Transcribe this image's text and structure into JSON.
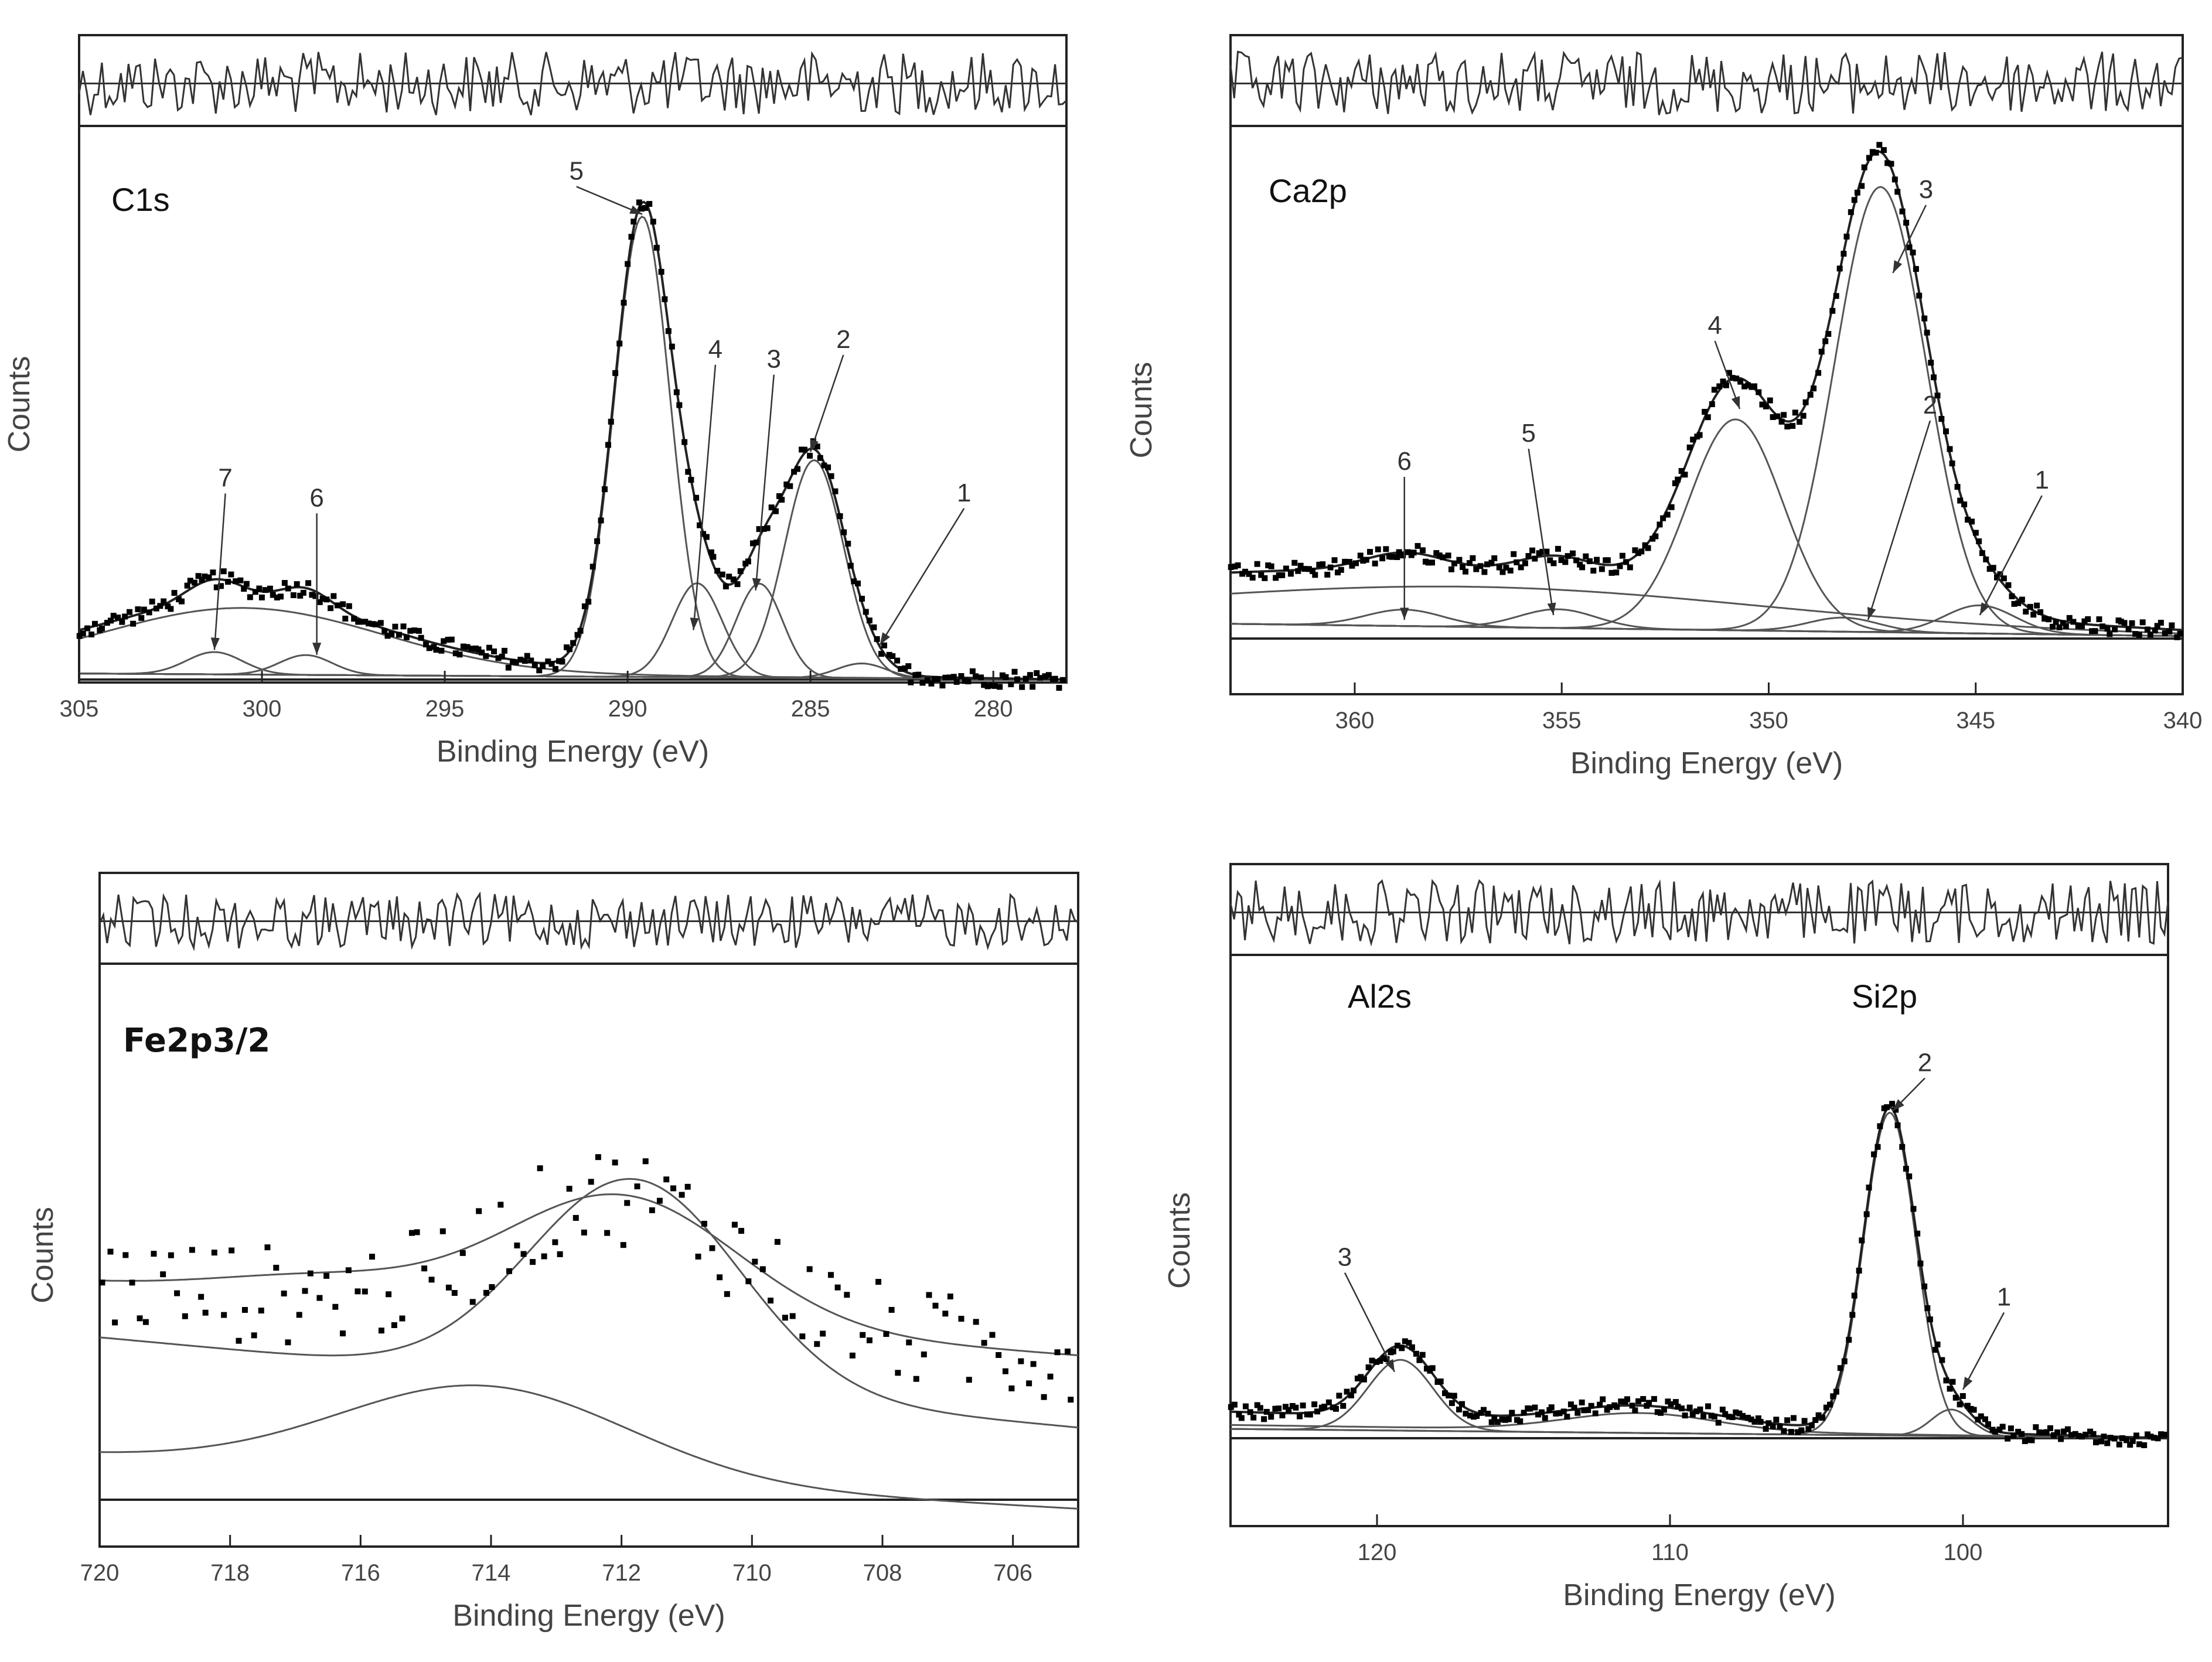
{
  "figure": {
    "description_note": "XPS high-resolution spectra",
    "colors": {
      "points": "#000000",
      "lines": "#555555",
      "axis": "#222222"
    }
  },
  "chart_data": [
    {
      "type": "scatter",
      "title": "C1s",
      "xlabel": "Binding Energy (eV)",
      "ylabel": "Counts",
      "xlim": [
        305,
        278
      ],
      "ylim": [
        0,
        1
      ],
      "xticks": [
        305,
        300,
        295,
        290,
        285,
        280
      ],
      "xtick_labels": [
        "305",
        "300",
        "295",
        "290",
        "285",
        "280"
      ],
      "background": {
        "start": 0.035,
        "end": 0.0
      },
      "peaks": [
        {
          "label": "1",
          "center": 283.6,
          "amplitude": 0.03,
          "fwhm": 1.6,
          "label_at": [
            280.8,
            0.36
          ],
          "arrow_to": [
            283.1,
            0.07
          ]
        },
        {
          "label": "2",
          "center": 284.9,
          "amplitude": 0.44,
          "fwhm": 1.9,
          "label_at": [
            284.1,
            0.67
          ],
          "arrow_to": [
            285.0,
            0.46
          ]
        },
        {
          "label": "3",
          "center": 286.4,
          "amplitude": 0.19,
          "fwhm": 1.5,
          "label_at": [
            286.0,
            0.63
          ],
          "arrow_to": [
            286.5,
            0.18
          ]
        },
        {
          "label": "4",
          "center": 288.1,
          "amplitude": 0.19,
          "fwhm": 1.6,
          "label_at": [
            287.6,
            0.65
          ],
          "arrow_to": [
            288.2,
            0.1
          ]
        },
        {
          "label": "5",
          "center": 289.6,
          "amplitude": 0.93,
          "fwhm": 1.8,
          "label_at": [
            291.4,
            1.01
          ],
          "arrow_to": [
            289.6,
            0.94
          ]
        },
        {
          "label": "6",
          "center": 298.8,
          "amplitude": 0.04,
          "fwhm": 1.7,
          "label_at": [
            298.5,
            0.35
          ],
          "arrow_to": [
            298.5,
            0.05
          ]
        },
        {
          "label": "7",
          "center": 301.3,
          "amplitude": 0.045,
          "fwhm": 1.8,
          "label_at": [
            301.0,
            0.39
          ],
          "arrow_to": [
            301.3,
            0.06
          ]
        }
      ],
      "broad_component": {
        "center": 300.5,
        "amplitude": 0.13,
        "fwhm": 9
      },
      "residual_noise": 0.35
    },
    {
      "type": "scatter",
      "title": "Ca2p",
      "xlabel": "Binding Energy (eV)",
      "ylabel": "Counts",
      "xlim": [
        363,
        340
      ],
      "ylim": [
        0,
        1
      ],
      "xticks": [
        360,
        355,
        350,
        345,
        340
      ],
      "xtick_labels": [
        "360",
        "355",
        "350",
        "345",
        "340"
      ],
      "background": {
        "start": 0.09,
        "end": 0.015
      },
      "peaks": [
        {
          "label": "1",
          "center": 344.9,
          "amplitude": 0.06,
          "fwhm": 2.0,
          "label_at": [
            343.4,
            0.32
          ],
          "arrow_to": [
            344.9,
            0.05
          ]
        },
        {
          "label": "2",
          "center": 348.2,
          "amplitude": 0.03,
          "fwhm": 2.0,
          "label_at": [
            346.1,
            0.48
          ],
          "arrow_to": [
            347.6,
            0.04
          ]
        },
        {
          "label": "3",
          "center": 347.3,
          "amplitude": 0.95,
          "fwhm": 2.6,
          "label_at": [
            346.2,
            0.94
          ],
          "arrow_to": [
            347.0,
            0.78
          ]
        },
        {
          "label": "4",
          "center": 350.8,
          "amplitude": 0.45,
          "fwhm": 2.7,
          "label_at": [
            351.3,
            0.65
          ],
          "arrow_to": [
            350.7,
            0.49
          ]
        },
        {
          "label": "5",
          "center": 355.1,
          "amplitude": 0.04,
          "fwhm": 2.2,
          "label_at": [
            355.8,
            0.42
          ],
          "arrow_to": [
            355.2,
            0.05
          ]
        },
        {
          "label": "6",
          "center": 358.8,
          "amplitude": 0.035,
          "fwhm": 2.2,
          "label_at": [
            358.8,
            0.36
          ],
          "arrow_to": [
            358.8,
            0.04
          ]
        }
      ],
      "broad_component": {
        "center": 357.0,
        "amplitude": 0.075,
        "fwhm": 16
      },
      "residual_noise": 0.35
    },
    {
      "type": "scatter",
      "title": "Fe2p3/2",
      "xlabel": "Binding Energy (eV)",
      "ylabel": "Counts",
      "xlim": [
        720,
        705
      ],
      "ylim": [
        0,
        1
      ],
      "xticks": [
        720,
        718,
        716,
        714,
        712,
        710,
        708,
        706
      ],
      "xtick_labels": [
        "720",
        "718",
        "716",
        "714",
        "712",
        "710",
        "708",
        "706"
      ],
      "background": {
        "start": 0.36,
        "end": 0.25
      },
      "peaks": [
        {
          "label": "",
          "center": 711.8,
          "amplitude": 0.46,
          "fwhm": 3.6,
          "label_at": null,
          "arrow_to": null
        },
        {
          "label": "",
          "center": 714.1,
          "amplitude": 0.2,
          "fwhm": 5.2,
          "label_at": null,
          "arrow_to": null
        }
      ],
      "lower_component": {
        "center": 714.1,
        "amplitude": 0.2,
        "fwhm": 5.2,
        "baseline": 0.1
      },
      "residual_noise": 0.3
    },
    {
      "type": "scatter",
      "title": "Al2s / Si2p",
      "annotations": [
        "Al2s",
        "Si2p"
      ],
      "xlabel": "Binding Energy (eV)",
      "ylabel": "Counts",
      "xlim": [
        125,
        93
      ],
      "ylim": [
        0,
        1
      ],
      "xticks": [
        120,
        110,
        100
      ],
      "xtick_labels": [
        "120",
        "110",
        "100"
      ],
      "background": {
        "start": 0.06,
        "end": 0.0
      },
      "peaks": [
        {
          "label": "1",
          "center": 100.4,
          "amplitude": 0.06,
          "fwhm": 1.6,
          "label_at": [
            98.6,
            0.3
          ],
          "arrow_to": [
            100.0,
            0.11
          ]
        },
        {
          "label": "2",
          "center": 102.5,
          "amplitude": 0.73,
          "fwhm": 2.1,
          "label_at": [
            101.3,
            0.83
          ],
          "arrow_to": [
            102.4,
            0.74
          ]
        },
        {
          "label": "3",
          "center": 119.2,
          "amplitude": 0.16,
          "fwhm": 2.6,
          "label_at": [
            121.1,
            0.39
          ],
          "arrow_to": [
            119.4,
            0.15
          ]
        }
      ],
      "broad_component": {
        "center": 111.0,
        "amplitude": 0.04,
        "fwhm": 6
      },
      "residual_noise": 0.35
    }
  ]
}
